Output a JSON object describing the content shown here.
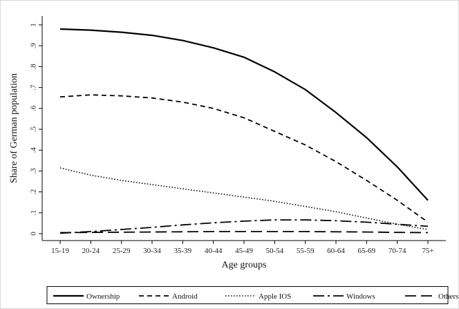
{
  "chart_data": {
    "type": "line",
    "title": "",
    "xlabel": "Age groups",
    "ylabel": "Share of German population",
    "categories": [
      "15-19",
      "20-24",
      "25-29",
      "30-34",
      "35-39",
      "40-44",
      "45-49",
      "50-54",
      "55-59",
      "60-64",
      "65-69",
      "70-74",
      "75+"
    ],
    "y_ticks": [
      0,
      0.1,
      0.2,
      0.3,
      0.4,
      0.5,
      0.6,
      0.7,
      0.8,
      0.9,
      1
    ],
    "y_tick_labels": [
      "0",
      ".1",
      ".2",
      ".3",
      ".4",
      ".5",
      ".6",
      ".7",
      ".8",
      ".9",
      "1"
    ],
    "ylim": [
      0,
      1
    ],
    "grid": false,
    "legend_position": "bottom",
    "series": [
      {
        "name": "Ownership",
        "style": "solid",
        "color": "#000000",
        "values": [
          0.98,
          0.975,
          0.965,
          0.95,
          0.925,
          0.89,
          0.845,
          0.775,
          0.69,
          0.58,
          0.46,
          0.32,
          0.16
        ]
      },
      {
        "name": "Android",
        "style": "dash",
        "color": "#000000",
        "values": [
          0.655,
          0.665,
          0.66,
          0.65,
          0.63,
          0.6,
          0.555,
          0.49,
          0.425,
          0.345,
          0.255,
          0.16,
          0.055
        ]
      },
      {
        "name": "Apple IOS",
        "style": "dot",
        "color": "#000000",
        "values": [
          0.315,
          0.28,
          0.255,
          0.235,
          0.215,
          0.195,
          0.175,
          0.155,
          0.13,
          0.105,
          0.075,
          0.045,
          0.02
        ]
      },
      {
        "name": "Windows",
        "style": "longdash-dot",
        "color": "#000000",
        "values": [
          0.002,
          0.01,
          0.02,
          0.03,
          0.042,
          0.052,
          0.06,
          0.066,
          0.066,
          0.062,
          0.055,
          0.045,
          0.035
        ]
      },
      {
        "name": "Others",
        "style": "longdash",
        "color": "#000000",
        "values": [
          0.005,
          0.006,
          0.007,
          0.008,
          0.009,
          0.01,
          0.01,
          0.01,
          0.01,
          0.009,
          0.008,
          0.006,
          0.005
        ]
      }
    ]
  }
}
